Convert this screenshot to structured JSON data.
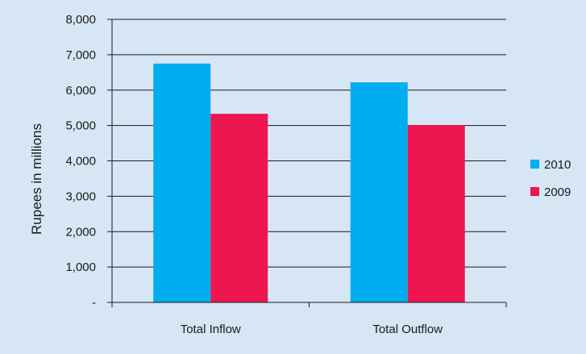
{
  "chart_data": {
    "type": "bar",
    "title": "",
    "xlabel": "",
    "ylabel": "Rupees in millions",
    "categories": [
      "Total Inflow",
      "Total Outflow"
    ],
    "series": [
      {
        "name": "2010",
        "values": [
          6750,
          6220
        ],
        "color": "#00aeef"
      },
      {
        "name": "2009",
        "values": [
          5330,
          5010
        ],
        "color": "#ed1651"
      }
    ],
    "ylim": [
      0,
      8000
    ],
    "yticks": [
      0,
      1000,
      2000,
      3000,
      4000,
      5000,
      6000,
      7000,
      8000
    ],
    "ytick_labels": [
      "-",
      "1,000",
      "2,000",
      "3,000",
      "4,000",
      "5,000",
      "6,000",
      "7,000",
      "8,000"
    ],
    "grid": true,
    "legend_position": "right",
    "background": "#d6e6f4"
  }
}
